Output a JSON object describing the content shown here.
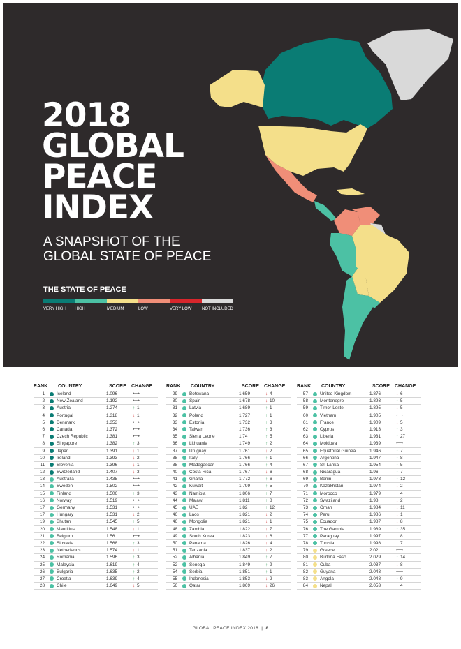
{
  "report": {
    "title_lines": [
      "2018",
      "GLOBAL",
      "PEACE",
      "INDEX"
    ],
    "subtitle_lines": [
      "A SNAPSHOT OF THE",
      "GLOBAL STATE OF PEACE"
    ]
  },
  "legend": {
    "heading": "THE STATE OF PEACE",
    "items": [
      {
        "label": "VERY HIGH",
        "color": "#0a7c74"
      },
      {
        "label": "HIGH",
        "color": "#4cc1a4"
      },
      {
        "label": "MEDIUM",
        "color": "#f4df8a"
      },
      {
        "label": "LOW",
        "color": "#f08e78"
      },
      {
        "label": "VERY LOW",
        "color": "#d8262c"
      },
      {
        "label": "NOT INCLUDED",
        "color": "#d9d9d9"
      }
    ]
  },
  "table": {
    "headers": {
      "rank": "RANK",
      "country": "COUNTRY",
      "score": "SCORE",
      "change": "CHANGE"
    },
    "columns": [
      [
        {
          "rank": "1",
          "country": "Iceland",
          "score": "1.096",
          "dir": "nc",
          "change": "",
          "level": "very_high"
        },
        {
          "rank": "2",
          "country": "New Zealand",
          "score": "1.192",
          "dir": "nc",
          "change": "",
          "level": "very_high"
        },
        {
          "rank": "3",
          "country": "Austria",
          "score": "1.274",
          "dir": "up",
          "change": "1",
          "level": "very_high"
        },
        {
          "rank": "4",
          "country": "Portugal",
          "score": "1.318",
          "dir": "dn",
          "change": "1",
          "level": "very_high"
        },
        {
          "rank": "5",
          "country": "Denmark",
          "score": "1.353",
          "dir": "nc",
          "change": "",
          "level": "very_high"
        },
        {
          "rank": "6",
          "country": "Canada",
          "score": "1.372",
          "dir": "nc",
          "change": "",
          "level": "very_high"
        },
        {
          "rank": "7",
          "country": "Czech Republic",
          "score": "1.381",
          "dir": "nc",
          "change": "",
          "level": "very_high"
        },
        {
          "rank": "8",
          "country": "Singapore",
          "score": "1.382",
          "dir": "up",
          "change": "3",
          "level": "very_high"
        },
        {
          "rank": "9",
          "country": "Japan",
          "score": "1.391",
          "dir": "dn",
          "change": "1",
          "level": "very_high"
        },
        {
          "rank": "10",
          "country": "Ireland",
          "score": "1.393",
          "dir": "dn",
          "change": "2",
          "level": "very_high"
        },
        {
          "rank": "11",
          "country": "Slovenia",
          "score": "1.396",
          "dir": "dn",
          "change": "1",
          "level": "very_high"
        },
        {
          "rank": "12",
          "country": "Switzerland",
          "score": "1.407",
          "dir": "dn",
          "change": "3",
          "level": "very_high"
        },
        {
          "rank": "13",
          "country": "Australia",
          "score": "1.435",
          "dir": "nc",
          "change": "",
          "level": "high"
        },
        {
          "rank": "14",
          "country": "Sweden",
          "score": "1.502",
          "dir": "nc",
          "change": "",
          "level": "high"
        },
        {
          "rank": "15",
          "country": "Finland",
          "score": "1.506",
          "dir": "up",
          "change": "3",
          "level": "high"
        },
        {
          "rank": "16",
          "country": "Norway",
          "score": "1.519",
          "dir": "nc",
          "change": "",
          "level": "high"
        },
        {
          "rank": "17",
          "country": "Germany",
          "score": "1.531",
          "dir": "nc",
          "change": "",
          "level": "high"
        },
        {
          "rank": "17",
          "country": "Hungary",
          "score": "1.531",
          "dir": "dn",
          "change": "2",
          "level": "high"
        },
        {
          "rank": "19",
          "country": "Bhutan",
          "score": "1.545",
          "dir": "up",
          "change": "5",
          "level": "high"
        },
        {
          "rank": "20",
          "country": "Mauritius",
          "score": "1.548",
          "dir": "dn",
          "change": "1",
          "level": "high"
        },
        {
          "rank": "21",
          "country": "Belgium",
          "score": "1.56",
          "dir": "nc",
          "change": "",
          "level": "high"
        },
        {
          "rank": "22",
          "country": "Slovakia",
          "score": "1.568",
          "dir": "up",
          "change": "3",
          "level": "high"
        },
        {
          "rank": "23",
          "country": "Netherlands",
          "score": "1.574",
          "dir": "dn",
          "change": "1",
          "level": "high"
        },
        {
          "rank": "24",
          "country": "Romania",
          "score": "1.596",
          "dir": "up",
          "change": "3",
          "level": "high"
        },
        {
          "rank": "25",
          "country": "Malaysia",
          "score": "1.619",
          "dir": "up",
          "change": "4",
          "level": "high"
        },
        {
          "rank": "26",
          "country": "Bulgaria",
          "score": "1.635",
          "dir": "up",
          "change": "2",
          "level": "high"
        },
        {
          "rank": "27",
          "country": "Croatia",
          "score": "1.639",
          "dir": "up",
          "change": "4",
          "level": "high"
        },
        {
          "rank": "28",
          "country": "Chile",
          "score": "1.649",
          "dir": "dn",
          "change": "5",
          "level": "high"
        }
      ],
      [
        {
          "rank": "29",
          "country": "Botswana",
          "score": "1.659",
          "dir": "dn",
          "change": "4",
          "level": "high"
        },
        {
          "rank": "30",
          "country": "Spain",
          "score": "1.678",
          "dir": "dn",
          "change": "10",
          "level": "high"
        },
        {
          "rank": "31",
          "country": "Latvia",
          "score": "1.689",
          "dir": "up",
          "change": "1",
          "level": "high"
        },
        {
          "rank": "32",
          "country": "Poland",
          "score": "1.727",
          "dir": "up",
          "change": "1",
          "level": "high"
        },
        {
          "rank": "33",
          "country": "Estonia",
          "score": "1.732",
          "dir": "up",
          "change": "3",
          "level": "high"
        },
        {
          "rank": "34",
          "country": "Taiwan",
          "score": "1.736",
          "dir": "up",
          "change": "3",
          "level": "high"
        },
        {
          "rank": "35",
          "country": "Sierra Leone",
          "score": "1.74",
          "dir": "up",
          "change": "5",
          "level": "high"
        },
        {
          "rank": "36",
          "country": "Lithuania",
          "score": "1.749",
          "dir": "up",
          "change": "2",
          "level": "high"
        },
        {
          "rank": "37",
          "country": "Uruguay",
          "score": "1.761",
          "dir": "dn",
          "change": "2",
          "level": "high"
        },
        {
          "rank": "38",
          "country": "Italy",
          "score": "1.766",
          "dir": "up",
          "change": "1",
          "level": "high"
        },
        {
          "rank": "38",
          "country": "Madagascar",
          "score": "1.766",
          "dir": "up",
          "change": "4",
          "level": "high"
        },
        {
          "rank": "40",
          "country": "Costa Rica",
          "score": "1.767",
          "dir": "dn",
          "change": "6",
          "level": "high"
        },
        {
          "rank": "41",
          "country": "Ghana",
          "score": "1.772",
          "dir": "up",
          "change": "6",
          "level": "high"
        },
        {
          "rank": "42",
          "country": "Kuwait",
          "score": "1.799",
          "dir": "up",
          "change": "5",
          "level": "high"
        },
        {
          "rank": "43",
          "country": "Namibia",
          "score": "1.806",
          "dir": "up",
          "change": "7",
          "level": "high"
        },
        {
          "rank": "44",
          "country": "Malawi",
          "score": "1.811",
          "dir": "up",
          "change": "8",
          "level": "high"
        },
        {
          "rank": "45",
          "country": "UAE",
          "score": "1.82",
          "dir": "up",
          "change": "12",
          "level": "high"
        },
        {
          "rank": "46",
          "country": "Laos",
          "score": "1.821",
          "dir": "dn",
          "change": "2",
          "level": "high"
        },
        {
          "rank": "46",
          "country": "Mongolia",
          "score": "1.821",
          "dir": "dn",
          "change": "1",
          "level": "high"
        },
        {
          "rank": "48",
          "country": "Zambia",
          "score": "1.822",
          "dir": "dn",
          "change": "7",
          "level": "high"
        },
        {
          "rank": "49",
          "country": "South Korea",
          "score": "1.823",
          "dir": "dn",
          "change": "6",
          "level": "high"
        },
        {
          "rank": "50",
          "country": "Panama",
          "score": "1.826",
          "dir": "dn",
          "change": "4",
          "level": "high"
        },
        {
          "rank": "51",
          "country": "Tanzania",
          "score": "1.837",
          "dir": "dn",
          "change": "2",
          "level": "high"
        },
        {
          "rank": "52",
          "country": "Albania",
          "score": "1.849",
          "dir": "up",
          "change": "7",
          "level": "high"
        },
        {
          "rank": "52",
          "country": "Senegal",
          "score": "1.849",
          "dir": "up",
          "change": "9",
          "level": "high"
        },
        {
          "rank": "54",
          "country": "Serbia",
          "score": "1.851",
          "dir": "up",
          "change": "1",
          "level": "high"
        },
        {
          "rank": "55",
          "country": "Indonesia",
          "score": "1.853",
          "dir": "dn",
          "change": "2",
          "level": "high"
        },
        {
          "rank": "56",
          "country": "Qatar",
          "score": "1.869",
          "dir": "dn",
          "change": "26",
          "level": "high"
        }
      ],
      [
        {
          "rank": "57",
          "country": "United Kingdom",
          "score": "1.876",
          "dir": "dn",
          "change": "6",
          "level": "high"
        },
        {
          "rank": "58",
          "country": "Montenegro",
          "score": "1.893",
          "dir": "up",
          "change": "5",
          "level": "high"
        },
        {
          "rank": "59",
          "country": "Timor-Leste",
          "score": "1.895",
          "dir": "dn",
          "change": "5",
          "level": "high"
        },
        {
          "rank": "60",
          "country": "Vietnam",
          "score": "1.905",
          "dir": "nc",
          "change": "",
          "level": "high"
        },
        {
          "rank": "61",
          "country": "France",
          "score": "1.909",
          "dir": "dn",
          "change": "5",
          "level": "high"
        },
        {
          "rank": "62",
          "country": "Cyprus",
          "score": "1.913",
          "dir": "up",
          "change": "3",
          "level": "high"
        },
        {
          "rank": "63",
          "country": "Liberia",
          "score": "1.931",
          "dir": "up",
          "change": "27",
          "level": "high"
        },
        {
          "rank": "64",
          "country": "Moldova",
          "score": "1.939",
          "dir": "nc",
          "change": "",
          "level": "high"
        },
        {
          "rank": "65",
          "country": "Equatorial Guinea",
          "score": "1.946",
          "dir": "up",
          "change": "7",
          "level": "high"
        },
        {
          "rank": "66",
          "country": "Argentina",
          "score": "1.947",
          "dir": "up",
          "change": "8",
          "level": "high"
        },
        {
          "rank": "67",
          "country": "Sri Lanka",
          "score": "1.954",
          "dir": "up",
          "change": "5",
          "level": "high"
        },
        {
          "rank": "68",
          "country": "Nicaragua",
          "score": "1.96",
          "dir": "up",
          "change": "7",
          "level": "high"
        },
        {
          "rank": "69",
          "country": "Benin",
          "score": "1.973",
          "dir": "up",
          "change": "12",
          "level": "high"
        },
        {
          "rank": "70",
          "country": "Kazakhstan",
          "score": "1.974",
          "dir": "dn",
          "change": "2",
          "level": "high"
        },
        {
          "rank": "71",
          "country": "Morocco",
          "score": "1.979",
          "dir": "up",
          "change": "4",
          "level": "high"
        },
        {
          "rank": "72",
          "country": "Swaziland",
          "score": "1.98",
          "dir": "dn",
          "change": "2",
          "level": "high"
        },
        {
          "rank": "73",
          "country": "Oman",
          "score": "1.984",
          "dir": "dn",
          "change": "11",
          "level": "high"
        },
        {
          "rank": "74",
          "country": "Peru",
          "score": "1.986",
          "dir": "dn",
          "change": "1",
          "level": "high"
        },
        {
          "rank": "75",
          "country": "Ecuador",
          "score": "1.987",
          "dir": "dn",
          "change": "8",
          "level": "high"
        },
        {
          "rank": "76",
          "country": "The Gambia",
          "score": "1.989",
          "dir": "up",
          "change": "35",
          "level": "high"
        },
        {
          "rank": "77",
          "country": "Paraguay",
          "score": "1.997",
          "dir": "dn",
          "change": "8",
          "level": "high"
        },
        {
          "rank": "78",
          "country": "Tunisia",
          "score": "1.998",
          "dir": "dn",
          "change": "7",
          "level": "high"
        },
        {
          "rank": "79",
          "country": "Greece",
          "score": "2.02",
          "dir": "nc",
          "change": "",
          "level": "medium"
        },
        {
          "rank": "80",
          "country": "Burkina Faso",
          "score": "2.029",
          "dir": "up",
          "change": "14",
          "level": "medium"
        },
        {
          "rank": "81",
          "country": "Cuba",
          "score": "2.037",
          "dir": "dn",
          "change": "8",
          "level": "medium"
        },
        {
          "rank": "82",
          "country": "Guyana",
          "score": "2.043",
          "dir": "nc",
          "change": "",
          "level": "medium"
        },
        {
          "rank": "83",
          "country": "Angola",
          "score": "2.048",
          "dir": "up",
          "change": "9",
          "level": "medium"
        },
        {
          "rank": "84",
          "country": "Nepal",
          "score": "2.053",
          "dir": "up",
          "change": "4",
          "level": "medium"
        }
      ]
    ]
  },
  "footer": {
    "text": "GLOBAL PEACE INDEX 2018",
    "separator": "|",
    "page": "8"
  },
  "colors": {
    "very_high": "#0a7c74",
    "high": "#4cc1a4",
    "medium": "#f4df8a",
    "low": "#f08e78",
    "very_low": "#d8262c",
    "not_included": "#d9d9d9",
    "hero_background": "#2e2a2b"
  }
}
